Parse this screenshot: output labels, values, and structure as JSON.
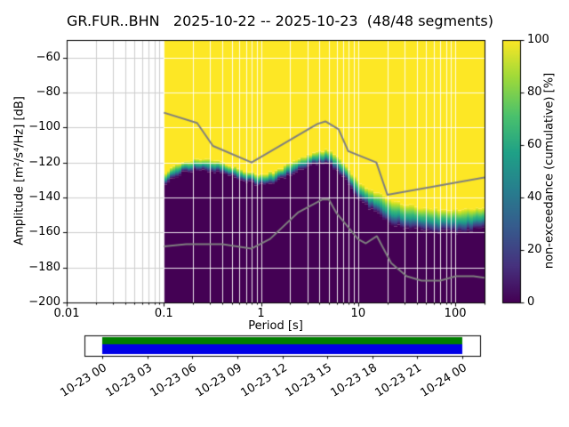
{
  "chart_data": {
    "type": "heatmap",
    "title": "GR.FUR..BHN   2025-10-22 -- 2025-10-23  (48/48 segments)",
    "xlabel": "Period [s]",
    "ylabel": "Amplitude [m²/s⁴/Hz] [dB]",
    "x_scale": "log",
    "xlim": [
      0.01,
      200
    ],
    "ylim": [
      -200,
      -50
    ],
    "grid": true,
    "x_ticks": [
      {
        "value": 0.01,
        "label": "0.01"
      },
      {
        "value": 0.1,
        "label": "0.1"
      },
      {
        "value": 1,
        "label": "1"
      },
      {
        "value": 10,
        "label": "10"
      },
      {
        "value": 100,
        "label": "100"
      }
    ],
    "y_ticks": [
      {
        "value": -60,
        "label": "−60"
      },
      {
        "value": -80,
        "label": "−80"
      },
      {
        "value": -100,
        "label": "−100"
      },
      {
        "value": -120,
        "label": "−120"
      },
      {
        "value": -140,
        "label": "−140"
      },
      {
        "value": -160,
        "label": "−160"
      },
      {
        "value": -180,
        "label": "−180"
      },
      {
        "value": -200,
        "label": "−200"
      }
    ],
    "colorbar": {
      "label": "non-exceedance (cumulative) [%]",
      "colormap": "viridis",
      "range": [
        0,
        100
      ],
      "ticks": [
        {
          "value": 0,
          "label": "0"
        },
        {
          "value": 20,
          "label": "20"
        },
        {
          "value": 40,
          "label": "40"
        },
        {
          "value": 60,
          "label": "60"
        },
        {
          "value": 80,
          "label": "80"
        },
        {
          "value": 100,
          "label": "100"
        }
      ]
    },
    "data_period_range": [
      0.1,
      200
    ],
    "distribution_band": {
      "periods": [
        0.1,
        0.13,
        0.17,
        0.25,
        0.35,
        0.5,
        0.7,
        1.0,
        1.4,
        2.0,
        3.0,
        4.0,
        5.0,
        6.0,
        8.0,
        10,
        13,
        17,
        22,
        30,
        50,
        100,
        200
      ],
      "top_db": [
        -126,
        -122,
        -119,
        -118,
        -119,
        -122,
        -125,
        -127,
        -125,
        -120,
        -116,
        -113,
        -113,
        -116,
        -124,
        -131,
        -135,
        -138,
        -142,
        -144,
        -146,
        -147,
        -146
      ],
      "bottom_db": [
        -132,
        -128,
        -125,
        -124,
        -125,
        -128,
        -131,
        -133,
        -131,
        -127,
        -123,
        -120,
        -121,
        -124,
        -132,
        -141,
        -146,
        -151,
        -155,
        -157,
        -159,
        -160,
        -158
      ]
    },
    "noise_models": {
      "nhnm": [
        [
          0.1,
          -91.5
        ],
        [
          0.22,
          -97.4
        ],
        [
          0.32,
          -110.5
        ],
        [
          0.8,
          -120.0
        ],
        [
          3.8,
          -98.0
        ],
        [
          4.6,
          -96.5
        ],
        [
          6.3,
          -101.0
        ],
        [
          7.9,
          -113.5
        ],
        [
          15.4,
          -120.0
        ],
        [
          20.0,
          -138.5
        ],
        [
          200.0,
          -128.5
        ]
      ],
      "nlnm": [
        [
          0.1,
          -168.0
        ],
        [
          0.17,
          -166.7
        ],
        [
          0.4,
          -166.7
        ],
        [
          0.8,
          -169.2
        ],
        [
          1.24,
          -163.7
        ],
        [
          2.4,
          -148.6
        ],
        [
          4.3,
          -141.1
        ],
        [
          5.0,
          -141.1
        ],
        [
          6.0,
          -149.0
        ],
        [
          10.0,
          -163.8
        ],
        [
          12.0,
          -166.2
        ],
        [
          15.6,
          -162.1
        ],
        [
          21.9,
          -177.5
        ],
        [
          31.6,
          -185.0
        ],
        [
          45.0,
          -187.5
        ],
        [
          70.0,
          -187.5
        ],
        [
          101.0,
          -185.0
        ],
        [
          154.0,
          -185.0
        ],
        [
          200.0,
          -185.9
        ]
      ]
    },
    "colors": {
      "high": "#fde725",
      "low": "#440154",
      "band": [
        "#fde725",
        "#b5de2b",
        "#6ece58",
        "#35b779",
        "#1f9e89",
        "#31688e",
        "#443983",
        "#440154"
      ],
      "viridis": [
        [
          0,
          "#440154"
        ],
        [
          0.14,
          "#46327e"
        ],
        [
          0.29,
          "#365c8d"
        ],
        [
          0.43,
          "#277f8e"
        ],
        [
          0.57,
          "#1fa187"
        ],
        [
          0.71,
          "#4ac16d"
        ],
        [
          0.86,
          "#a0da39"
        ],
        [
          1,
          "#fde725"
        ]
      ],
      "noise_model": "#7f7f7f",
      "grid_light": "#cdcdcd",
      "grid_on_data": "rgba(255,255,255,0.9)"
    }
  },
  "timeline": {
    "tick_labels": [
      "10-23 00",
      "10-23 03",
      "10-23 06",
      "10-23 09",
      "10-23 12",
      "10-23 15",
      "10-23 18",
      "10-23 21",
      "10-24 00"
    ],
    "coverage": {
      "top_color": "#007f00",
      "bottom_color": "#0000e6"
    }
  }
}
